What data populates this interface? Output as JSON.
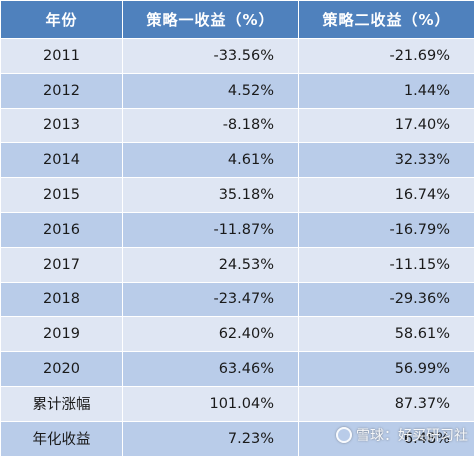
{
  "header": {
    "col_year": "年份",
    "col_strategy1": "策略一收益（%）",
    "col_strategy2": "策略二收益（%）"
  },
  "rows": [
    {
      "label": "2011",
      "s1": "-33.56%",
      "s2": "-21.69%"
    },
    {
      "label": "2012",
      "s1": "4.52%",
      "s2": "1.44%"
    },
    {
      "label": "2013",
      "s1": "-8.18%",
      "s2": "17.40%"
    },
    {
      "label": "2014",
      "s1": "4.61%",
      "s2": "32.33%"
    },
    {
      "label": "2015",
      "s1": "35.18%",
      "s2": "16.74%"
    },
    {
      "label": "2016",
      "s1": "-11.87%",
      "s2": "-16.79%"
    },
    {
      "label": "2017",
      "s1": "24.53%",
      "s2": "-11.15%"
    },
    {
      "label": "2018",
      "s1": "-23.47%",
      "s2": "-29.36%"
    },
    {
      "label": "2019",
      "s1": "62.40%",
      "s2": "58.61%"
    },
    {
      "label": "2020",
      "s1": "63.46%",
      "s2": "56.99%"
    },
    {
      "label": "累计涨幅",
      "s1": "101.04%",
      "s2": "87.37%"
    },
    {
      "label": "年化收益",
      "s1": "7.23%",
      "s2": "6.48%"
    }
  ],
  "watermark": {
    "text": "雪球：好买研习社",
    "icon": "snowball-logo-icon"
  },
  "colors": {
    "header_bg": "#4f81bd",
    "row_light": "#dfe6f3",
    "row_dark": "#b9cce9"
  }
}
